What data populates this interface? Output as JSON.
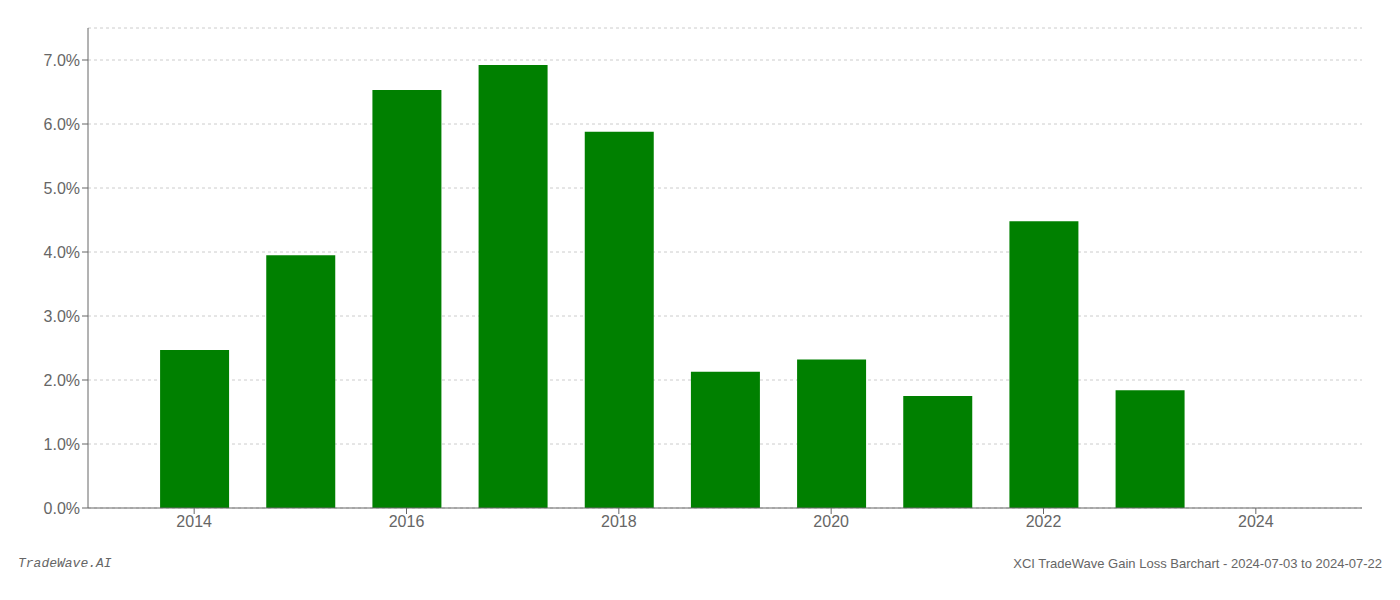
{
  "chart_data": {
    "type": "bar",
    "x": [
      2014,
      2015,
      2016,
      2017,
      2018,
      2019,
      2020,
      2021,
      2022,
      2023
    ],
    "values": [
      0.0247,
      0.0395,
      0.0653,
      0.0692,
      0.0588,
      0.0213,
      0.0232,
      0.0175,
      0.0448,
      0.0184
    ],
    "color": "#008000",
    "xlim": [
      2013,
      2025
    ],
    "xticks": [
      2014,
      2016,
      2018,
      2020,
      2022,
      2024
    ],
    "ylim": [
      0,
      0.075
    ],
    "yticks": [
      {
        "value": 0.0,
        "label": "0.0%"
      },
      {
        "value": 0.01,
        "label": "1.0%"
      },
      {
        "value": 0.02,
        "label": "2.0%"
      },
      {
        "value": 0.03,
        "label": "3.0%"
      },
      {
        "value": 0.04,
        "label": "4.0%"
      },
      {
        "value": 0.05,
        "label": "5.0%"
      },
      {
        "value": 0.06,
        "label": "6.0%"
      },
      {
        "value": 0.07,
        "label": "7.0%"
      }
    ],
    "grid": "y",
    "annotations": [
      "TradeWave.AI",
      "XCI TradeWave Gain Loss Barchart - 2024-07-03 to 2024-07-22"
    ]
  }
}
